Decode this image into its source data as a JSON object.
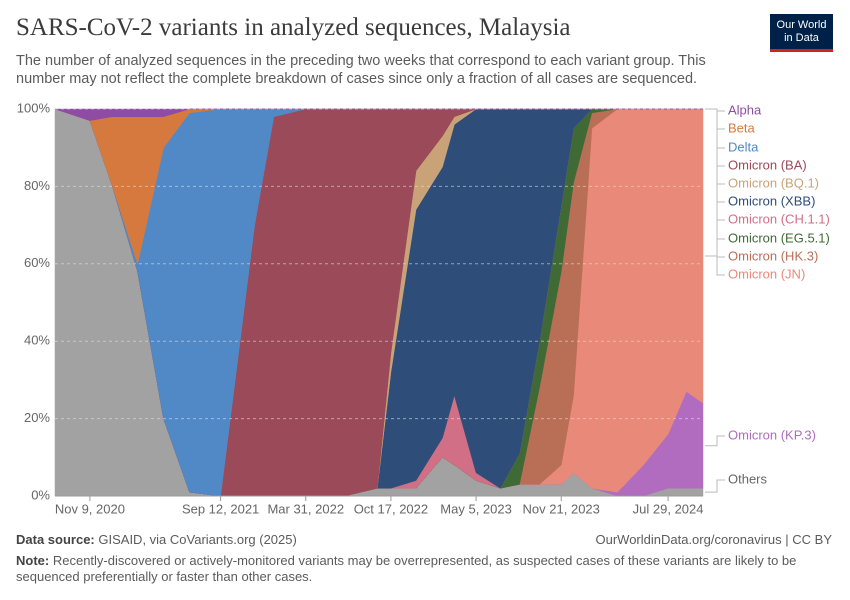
{
  "chart_data": {
    "type": "area",
    "stacked": true,
    "title": "SARS-CoV-2 variants in analyzed sequences, Malaysia",
    "subtitle": "The number of analyzed sequences in the preceding two weeks that correspond to each variant group. This number may not reflect the complete breakdown of cases since only a fraction of all cases are sequenced.",
    "logo": [
      "Our World",
      "in Data"
    ],
    "source_label": "Data source:",
    "source": "GISAID, via CoVariants.org (2025)",
    "credit": "OurWorldinData.org/coronavirus | CC BY",
    "note_label": "Note:",
    "note": "Recently-discovered or actively-monitored variants may be overrepresented, as suspected cases of these variants are likely to be sequenced preferentially or faster than other cases.",
    "x": [
      "Aug 19, 2020",
      "Nov 9, 2020",
      "Jan 1, 2021",
      "Mar 1, 2021",
      "May 1, 2021",
      "Jul 1, 2021",
      "Sep 12, 2021",
      "Dec 1, 2021",
      "Jan 15, 2022",
      "Mar 31, 2022",
      "Jul 1, 2022",
      "Sep 15, 2022",
      "Oct 17, 2022",
      "Dec 15, 2022",
      "Feb 15, 2023",
      "Mar 15, 2023",
      "May 5, 2023",
      "Jul 1, 2023",
      "Aug 15, 2023",
      "Oct 1, 2023",
      "Nov 21, 2023",
      "Dec 20, 2023",
      "Feb 1, 2024",
      "Apr 1, 2024",
      "Jun 1, 2024",
      "Jul 29, 2024",
      "Sep 10, 2024",
      "Oct 19, 2024"
    ],
    "xlim": [
      "Aug 19, 2020",
      "Oct 19, 2024"
    ],
    "xticks": [
      "Nov 9, 2020",
      "Sep 12, 2021",
      "Mar 31, 2022",
      "Oct 17, 2022",
      "May 5, 2023",
      "Nov 21, 2023",
      "Jul 29, 2024"
    ],
    "ylim": [
      0,
      100
    ],
    "yticks": [
      {
        "value": 0,
        "label": "0%"
      },
      {
        "value": 20,
        "label": "20%"
      },
      {
        "value": 40,
        "label": "40%"
      },
      {
        "value": 60,
        "label": "60%"
      },
      {
        "value": 80,
        "label": "80%"
      },
      {
        "value": 100,
        "label": "100%"
      }
    ],
    "grid": true,
    "series": [
      {
        "name": "Others",
        "color": "#a2a2a2",
        "values": [
          100,
          97,
          80,
          58,
          20,
          1,
          0,
          0,
          0,
          0,
          0,
          2,
          2,
          2,
          10,
          8,
          4,
          2,
          3,
          3,
          3,
          6,
          2,
          0,
          0,
          2,
          2,
          2
        ]
      },
      {
        "name": "Omicron (KP.3)",
        "color": "#b16cc0",
        "values": [
          0,
          0,
          0,
          0,
          0,
          0,
          0,
          0,
          0,
          0,
          0,
          0,
          0,
          0,
          0,
          0,
          0,
          0,
          0,
          0,
          0,
          0,
          0,
          1,
          8,
          14,
          25,
          22
        ]
      },
      {
        "name": "Omicron (JN)",
        "color": "#e8897a",
        "values": [
          0,
          0,
          0,
          0,
          0,
          0,
          0,
          0,
          0,
          0,
          0,
          0,
          0,
          0,
          0,
          0,
          0,
          0,
          0,
          0,
          5,
          20,
          93,
          99,
          92,
          84,
          73,
          76
        ]
      },
      {
        "name": "Omicron (HK.3)",
        "color": "#b96f55",
        "values": [
          0,
          0,
          0,
          0,
          0,
          0,
          0,
          0,
          0,
          0,
          0,
          0,
          0,
          0,
          0,
          0,
          0,
          0,
          0,
          25,
          50,
          55,
          4,
          0,
          0,
          0,
          0,
          0
        ]
      },
      {
        "name": "Omicron (EG.5.1)",
        "color": "#3f6a36",
        "values": [
          0,
          0,
          0,
          0,
          0,
          0,
          0,
          0,
          0,
          0,
          0,
          0,
          0,
          0,
          0,
          0,
          0,
          0,
          8,
          12,
          17,
          14,
          1,
          0,
          0,
          0,
          0,
          0
        ]
      },
      {
        "name": "Omicron (CH.1.1)",
        "color": "#d16f86",
        "values": [
          0,
          0,
          0,
          0,
          0,
          0,
          0,
          0,
          0,
          0,
          0,
          0,
          0,
          2,
          5,
          18,
          2,
          0,
          0,
          0,
          0,
          0,
          0,
          0,
          0,
          0,
          0,
          0
        ]
      },
      {
        "name": "Omicron (XBB)",
        "color": "#2e4d78",
        "values": [
          0,
          0,
          0,
          0,
          0,
          0,
          0,
          0,
          0,
          0,
          0,
          0,
          30,
          70,
          70,
          70,
          94,
          98,
          89,
          60,
          25,
          5,
          0,
          0,
          0,
          0,
          0,
          0
        ]
      },
      {
        "name": "Omicron (BQ.1)",
        "color": "#c9a377",
        "values": [
          0,
          0,
          0,
          0,
          0,
          0,
          0,
          0,
          0,
          0,
          0,
          0,
          5,
          10,
          8,
          2,
          0,
          0,
          0,
          0,
          0,
          0,
          0,
          0,
          0,
          0,
          0,
          0
        ]
      },
      {
        "name": "Omicron (BA)",
        "color": "#9a4a58",
        "values": [
          0,
          0,
          0,
          0,
          0,
          0,
          0,
          70,
          98,
          100,
          100,
          98,
          63,
          16,
          7,
          2,
          0,
          0,
          0,
          0,
          0,
          0,
          0,
          0,
          0,
          0,
          0,
          0
        ]
      },
      {
        "name": "Delta",
        "color": "#5089c6",
        "values": [
          0,
          0,
          0,
          2,
          70,
          98,
          100,
          30,
          2,
          0,
          0,
          0,
          0,
          0,
          0,
          0,
          0,
          0,
          0,
          0,
          0,
          0,
          0,
          0,
          0,
          0,
          0,
          0
        ]
      },
      {
        "name": "Beta",
        "color": "#d6793f",
        "values": [
          0,
          0,
          18,
          38,
          8,
          1,
          0,
          0,
          0,
          0,
          0,
          0,
          0,
          0,
          0,
          0,
          0,
          0,
          0,
          0,
          0,
          0,
          0,
          0,
          0,
          0,
          0,
          0
        ]
      },
      {
        "name": "Alpha",
        "color": "#8e4da3",
        "values": [
          0,
          3,
          2,
          2,
          2,
          0,
          0,
          0,
          0,
          0,
          0,
          0,
          0,
          0,
          0,
          0,
          0,
          0,
          0,
          0,
          0,
          0,
          0,
          0,
          0,
          0,
          0,
          0
        ]
      }
    ]
  }
}
